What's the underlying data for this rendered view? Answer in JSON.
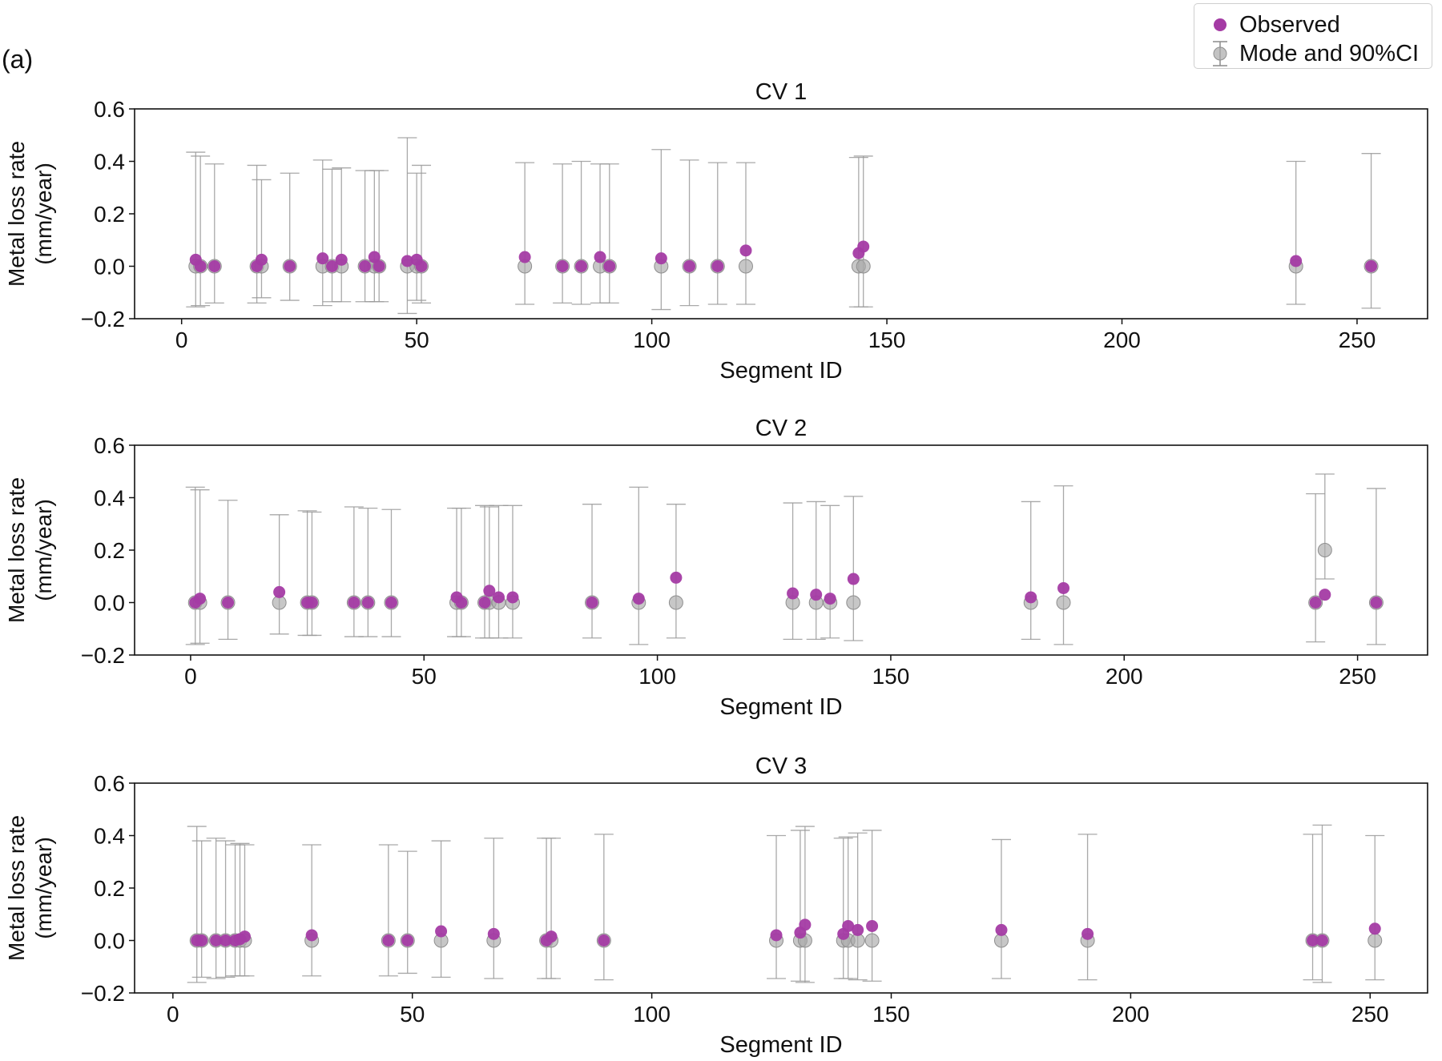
{
  "panel_label": "(a)",
  "legend": {
    "observed": "Observed",
    "mode_ci": "Mode and 90%CI"
  },
  "colors": {
    "observed": "#a43ba4",
    "mode": "#a9a9a9",
    "errorbar": "#9a9a9a",
    "axis": "#111111"
  },
  "chart_data": [
    {
      "type": "scatter",
      "title": "CV 1",
      "xlabel": "Segment ID",
      "ylabel": [
        "Metal loss rate",
        "(mm/year)"
      ],
      "xlim": [
        -10,
        265
      ],
      "ylim": [
        -0.2,
        0.6
      ],
      "xticks": [
        0,
        50,
        100,
        150,
        200,
        250
      ],
      "yticks": [
        -0.2,
        0.0,
        0.2,
        0.4,
        0.6
      ],
      "ytick_labels": [
        "−0.2",
        "0.0",
        "0.2",
        "0.4",
        "0.6"
      ],
      "mode_ci": [
        {
          "x": 3,
          "mode": 0,
          "lo": -0.155,
          "hi": 0.435
        },
        {
          "x": 4,
          "mode": 0,
          "lo": -0.15,
          "hi": 0.42
        },
        {
          "x": 7,
          "mode": 0,
          "lo": -0.14,
          "hi": 0.39
        },
        {
          "x": 16,
          "mode": 0,
          "lo": -0.14,
          "hi": 0.385
        },
        {
          "x": 17,
          "mode": 0,
          "lo": -0.12,
          "hi": 0.33
        },
        {
          "x": 23,
          "mode": 0,
          "lo": -0.13,
          "hi": 0.355
        },
        {
          "x": 30,
          "mode": 0,
          "lo": -0.15,
          "hi": 0.405
        },
        {
          "x": 32,
          "mode": 0,
          "lo": -0.135,
          "hi": 0.37
        },
        {
          "x": 34,
          "mode": 0,
          "lo": -0.135,
          "hi": 0.375
        },
        {
          "x": 39,
          "mode": 0,
          "lo": -0.135,
          "hi": 0.365
        },
        {
          "x": 41,
          "mode": 0,
          "lo": -0.135,
          "hi": 0.365
        },
        {
          "x": 42,
          "mode": 0,
          "lo": -0.135,
          "hi": 0.365
        },
        {
          "x": 48,
          "mode": 0,
          "lo": -0.18,
          "hi": 0.49
        },
        {
          "x": 50,
          "mode": 0,
          "lo": -0.13,
          "hi": 0.355
        },
        {
          "x": 51,
          "mode": 0,
          "lo": -0.14,
          "hi": 0.385
        },
        {
          "x": 73,
          "mode": 0,
          "lo": -0.145,
          "hi": 0.395
        },
        {
          "x": 81,
          "mode": 0,
          "lo": -0.14,
          "hi": 0.39
        },
        {
          "x": 85,
          "mode": 0,
          "lo": -0.145,
          "hi": 0.4
        },
        {
          "x": 89,
          "mode": 0,
          "lo": -0.14,
          "hi": 0.39
        },
        {
          "x": 91,
          "mode": 0,
          "lo": -0.14,
          "hi": 0.39
        },
        {
          "x": 102,
          "mode": 0,
          "lo": -0.165,
          "hi": 0.445
        },
        {
          "x": 108,
          "mode": 0,
          "lo": -0.15,
          "hi": 0.405
        },
        {
          "x": 114,
          "mode": 0,
          "lo": -0.145,
          "hi": 0.395
        },
        {
          "x": 120,
          "mode": 0,
          "lo": -0.145,
          "hi": 0.395
        },
        {
          "x": 144,
          "mode": 0,
          "lo": -0.155,
          "hi": 0.415
        },
        {
          "x": 145,
          "mode": 0,
          "lo": -0.155,
          "hi": 0.42
        },
        {
          "x": 237,
          "mode": 0,
          "lo": -0.145,
          "hi": 0.4
        },
        {
          "x": 253,
          "mode": 0,
          "lo": -0.16,
          "hi": 0.43
        }
      ],
      "observed": [
        {
          "x": 3,
          "y": 0.025
        },
        {
          "x": 4,
          "y": 0.0
        },
        {
          "x": 7,
          "y": 0.0
        },
        {
          "x": 16,
          "y": 0.0
        },
        {
          "x": 17,
          "y": 0.025
        },
        {
          "x": 23,
          "y": 0.0
        },
        {
          "x": 30,
          "y": 0.03
        },
        {
          "x": 32,
          "y": 0.0
        },
        {
          "x": 34,
          "y": 0.025
        },
        {
          "x": 39,
          "y": 0.0
        },
        {
          "x": 41,
          "y": 0.035
        },
        {
          "x": 42,
          "y": 0.0
        },
        {
          "x": 48,
          "y": 0.02
        },
        {
          "x": 50,
          "y": 0.025
        },
        {
          "x": 51,
          "y": 0.0
        },
        {
          "x": 73,
          "y": 0.035
        },
        {
          "x": 81,
          "y": 0.0
        },
        {
          "x": 85,
          "y": 0.0
        },
        {
          "x": 89,
          "y": 0.035
        },
        {
          "x": 91,
          "y": 0.0
        },
        {
          "x": 102,
          "y": 0.03
        },
        {
          "x": 108,
          "y": 0.0
        },
        {
          "x": 114,
          "y": 0.0
        },
        {
          "x": 120,
          "y": 0.06
        },
        {
          "x": 144,
          "y": 0.05
        },
        {
          "x": 145,
          "y": 0.075
        },
        {
          "x": 237,
          "y": 0.02
        },
        {
          "x": 253,
          "y": 0.0
        }
      ]
    },
    {
      "type": "scatter",
      "title": "CV 2",
      "xlabel": "Segment ID",
      "ylabel": [
        "Metal loss rate",
        "(mm/year)"
      ],
      "xlim": [
        -12,
        265
      ],
      "ylim": [
        -0.2,
        0.6
      ],
      "xticks": [
        0,
        50,
        100,
        150,
        200,
        250
      ],
      "yticks": [
        -0.2,
        0.0,
        0.2,
        0.4,
        0.6
      ],
      "ytick_labels": [
        "−0.2",
        "0.0",
        "0.2",
        "0.4",
        "0.6"
      ],
      "mode_ci": [
        {
          "x": 1,
          "mode": 0,
          "lo": -0.16,
          "hi": 0.44
        },
        {
          "x": 2,
          "mode": 0,
          "lo": -0.155,
          "hi": 0.43
        },
        {
          "x": 8,
          "mode": 0,
          "lo": -0.14,
          "hi": 0.39
        },
        {
          "x": 19,
          "mode": 0,
          "lo": -0.12,
          "hi": 0.335
        },
        {
          "x": 25,
          "mode": 0,
          "lo": -0.125,
          "hi": 0.35
        },
        {
          "x": 26,
          "mode": 0,
          "lo": -0.125,
          "hi": 0.345
        },
        {
          "x": 35,
          "mode": 0,
          "lo": -0.13,
          "hi": 0.365
        },
        {
          "x": 38,
          "mode": 0,
          "lo": -0.13,
          "hi": 0.36
        },
        {
          "x": 43,
          "mode": 0,
          "lo": -0.13,
          "hi": 0.355
        },
        {
          "x": 57,
          "mode": 0,
          "lo": -0.13,
          "hi": 0.36
        },
        {
          "x": 58,
          "mode": 0,
          "lo": -0.13,
          "hi": 0.36
        },
        {
          "x": 63,
          "mode": 0,
          "lo": -0.135,
          "hi": 0.37
        },
        {
          "x": 64,
          "mode": 0,
          "lo": -0.135,
          "hi": 0.365
        },
        {
          "x": 66,
          "mode": 0,
          "lo": -0.135,
          "hi": 0.37
        },
        {
          "x": 69,
          "mode": 0,
          "lo": -0.135,
          "hi": 0.37
        },
        {
          "x": 86,
          "mode": 0,
          "lo": -0.135,
          "hi": 0.375
        },
        {
          "x": 96,
          "mode": 0,
          "lo": -0.16,
          "hi": 0.44
        },
        {
          "x": 104,
          "mode": 0,
          "lo": -0.135,
          "hi": 0.375
        },
        {
          "x": 129,
          "mode": 0,
          "lo": -0.14,
          "hi": 0.38
        },
        {
          "x": 134,
          "mode": 0,
          "lo": -0.14,
          "hi": 0.385
        },
        {
          "x": 137,
          "mode": 0,
          "lo": -0.135,
          "hi": 0.37
        },
        {
          "x": 142,
          "mode": 0,
          "lo": -0.145,
          "hi": 0.405
        },
        {
          "x": 180,
          "mode": 0,
          "lo": -0.14,
          "hi": 0.385
        },
        {
          "x": 187,
          "mode": 0,
          "lo": -0.16,
          "hi": 0.445
        },
        {
          "x": 241,
          "mode": 0,
          "lo": -0.15,
          "hi": 0.415
        },
        {
          "x": 243,
          "mode": 0.2,
          "lo": 0.09,
          "hi": 0.49
        },
        {
          "x": 254,
          "mode": 0,
          "lo": -0.16,
          "hi": 0.435
        }
      ],
      "observed": [
        {
          "x": 1,
          "y": 0.0
        },
        {
          "x": 2,
          "y": 0.015
        },
        {
          "x": 8,
          "y": 0.0
        },
        {
          "x": 19,
          "y": 0.04
        },
        {
          "x": 25,
          "y": 0.0
        },
        {
          "x": 26,
          "y": 0.0
        },
        {
          "x": 35,
          "y": 0.0
        },
        {
          "x": 38,
          "y": 0.0
        },
        {
          "x": 43,
          "y": 0.0
        },
        {
          "x": 57,
          "y": 0.02
        },
        {
          "x": 58,
          "y": 0.0
        },
        {
          "x": 63,
          "y": 0.0
        },
        {
          "x": 64,
          "y": 0.045
        },
        {
          "x": 66,
          "y": 0.02
        },
        {
          "x": 69,
          "y": 0.02
        },
        {
          "x": 86,
          "y": 0.0
        },
        {
          "x": 96,
          "y": 0.015
        },
        {
          "x": 104,
          "y": 0.095
        },
        {
          "x": 129,
          "y": 0.035
        },
        {
          "x": 134,
          "y": 0.03
        },
        {
          "x": 137,
          "y": 0.015
        },
        {
          "x": 142,
          "y": 0.09
        },
        {
          "x": 180,
          "y": 0.02
        },
        {
          "x": 187,
          "y": 0.055
        },
        {
          "x": 241,
          "y": 0.0
        },
        {
          "x": 243,
          "y": 0.03
        },
        {
          "x": 254,
          "y": 0.0
        }
      ]
    },
    {
      "type": "scatter",
      "title": "CV 3",
      "xlabel": "Segment ID",
      "ylabel": [
        "Metal loss rate",
        "(mm/year)"
      ],
      "xlim": [
        -8,
        262
      ],
      "ylim": [
        -0.2,
        0.6
      ],
      "xticks": [
        0,
        50,
        100,
        150,
        200,
        250
      ],
      "yticks": [
        -0.2,
        0.0,
        0.2,
        0.4,
        0.6
      ],
      "ytick_labels": [
        "−0.2",
        "0.0",
        "0.2",
        "0.4",
        "0.6"
      ],
      "mode_ci": [
        {
          "x": 5,
          "mode": 0,
          "lo": -0.16,
          "hi": 0.435
        },
        {
          "x": 6,
          "mode": 0,
          "lo": -0.14,
          "hi": 0.38
        },
        {
          "x": 9,
          "mode": 0,
          "lo": -0.145,
          "hi": 0.39
        },
        {
          "x": 11,
          "mode": 0,
          "lo": -0.14,
          "hi": 0.38
        },
        {
          "x": 13,
          "mode": 0,
          "lo": -0.135,
          "hi": 0.365
        },
        {
          "x": 14,
          "mode": 0,
          "lo": -0.135,
          "hi": 0.37
        },
        {
          "x": 15,
          "mode": 0,
          "lo": -0.135,
          "hi": 0.365
        },
        {
          "x": 29,
          "mode": 0,
          "lo": -0.135,
          "hi": 0.365
        },
        {
          "x": 45,
          "mode": 0,
          "lo": -0.135,
          "hi": 0.365
        },
        {
          "x": 49,
          "mode": 0,
          "lo": -0.125,
          "hi": 0.34
        },
        {
          "x": 56,
          "mode": 0,
          "lo": -0.14,
          "hi": 0.38
        },
        {
          "x": 67,
          "mode": 0,
          "lo": -0.145,
          "hi": 0.39
        },
        {
          "x": 78,
          "mode": 0,
          "lo": -0.145,
          "hi": 0.39
        },
        {
          "x": 79,
          "mode": 0,
          "lo": -0.145,
          "hi": 0.39
        },
        {
          "x": 90,
          "mode": 0,
          "lo": -0.15,
          "hi": 0.405
        },
        {
          "x": 126,
          "mode": 0,
          "lo": -0.145,
          "hi": 0.4
        },
        {
          "x": 131,
          "mode": 0,
          "lo": -0.155,
          "hi": 0.42
        },
        {
          "x": 132,
          "mode": 0,
          "lo": -0.16,
          "hi": 0.435
        },
        {
          "x": 140,
          "mode": 0,
          "lo": -0.145,
          "hi": 0.39
        },
        {
          "x": 141,
          "mode": 0,
          "lo": -0.145,
          "hi": 0.395
        },
        {
          "x": 143,
          "mode": 0,
          "lo": -0.15,
          "hi": 0.41
        },
        {
          "x": 146,
          "mode": 0,
          "lo": -0.155,
          "hi": 0.42
        },
        {
          "x": 173,
          "mode": 0,
          "lo": -0.145,
          "hi": 0.385
        },
        {
          "x": 191,
          "mode": 0,
          "lo": -0.15,
          "hi": 0.405
        },
        {
          "x": 238,
          "mode": 0,
          "lo": -0.15,
          "hi": 0.405
        },
        {
          "x": 240,
          "mode": 0,
          "lo": -0.16,
          "hi": 0.44
        },
        {
          "x": 251,
          "mode": 0,
          "lo": -0.15,
          "hi": 0.4
        }
      ],
      "observed": [
        {
          "x": 5,
          "y": 0.0
        },
        {
          "x": 6,
          "y": 0.0
        },
        {
          "x": 9,
          "y": 0.0
        },
        {
          "x": 11,
          "y": 0.0
        },
        {
          "x": 13,
          "y": 0.0
        },
        {
          "x": 14,
          "y": 0.005
        },
        {
          "x": 15,
          "y": 0.015
        },
        {
          "x": 29,
          "y": 0.02
        },
        {
          "x": 45,
          "y": 0.0
        },
        {
          "x": 49,
          "y": 0.0
        },
        {
          "x": 56,
          "y": 0.035
        },
        {
          "x": 67,
          "y": 0.025
        },
        {
          "x": 78,
          "y": 0.0
        },
        {
          "x": 79,
          "y": 0.015
        },
        {
          "x": 90,
          "y": 0.0
        },
        {
          "x": 126,
          "y": 0.02
        },
        {
          "x": 131,
          "y": 0.03
        },
        {
          "x": 132,
          "y": 0.06
        },
        {
          "x": 140,
          "y": 0.025
        },
        {
          "x": 141,
          "y": 0.055
        },
        {
          "x": 143,
          "y": 0.04
        },
        {
          "x": 146,
          "y": 0.055
        },
        {
          "x": 173,
          "y": 0.04
        },
        {
          "x": 191,
          "y": 0.025
        },
        {
          "x": 238,
          "y": 0.0
        },
        {
          "x": 240,
          "y": 0.0
        },
        {
          "x": 251,
          "y": 0.045
        }
      ]
    }
  ]
}
